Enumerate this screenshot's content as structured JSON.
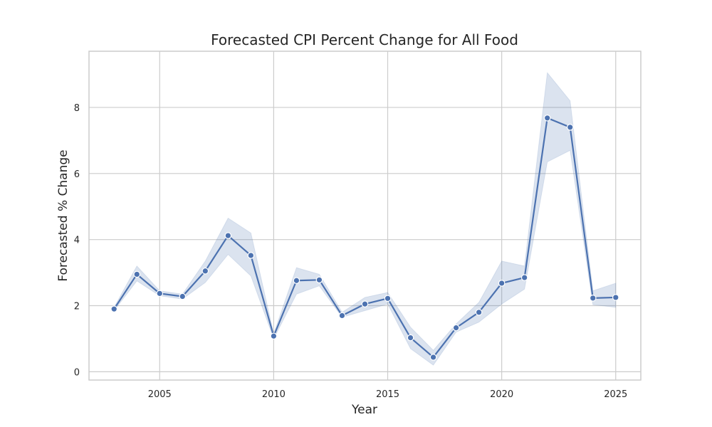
{
  "chart_data": {
    "type": "line",
    "title": "Forecasted CPI Percent Change for All Food",
    "xlabel": "Year",
    "ylabel": "Forecasted % Change",
    "xlim": [
      2001.9,
      2026.1
    ],
    "ylim": [
      -0.25,
      9.7
    ],
    "x_ticks": [
      2005,
      2010,
      2015,
      2020,
      2025
    ],
    "y_ticks": [
      0,
      2,
      4,
      6,
      8
    ],
    "x_tick_labels": [
      "2005",
      "2010",
      "2015",
      "2020",
      "2025"
    ],
    "y_tick_labels": [
      "0",
      "2",
      "4",
      "6",
      "8"
    ],
    "grid": true,
    "legend": "none",
    "colors": {
      "series": "#4c72b0",
      "grid": "#cccccc",
      "text": "#262626"
    },
    "series": [
      {
        "x": [
          2003,
          2004,
          2005,
          2006,
          2007,
          2008,
          2009,
          2010,
          2011,
          2012,
          2013,
          2014,
          2015,
          2016,
          2017,
          2018,
          2019,
          2020,
          2021,
          2022,
          2023,
          2024,
          2025
        ],
        "values": [
          1.9,
          2.95,
          2.37,
          2.28,
          3.05,
          4.12,
          3.52,
          1.08,
          2.76,
          2.78,
          1.7,
          2.05,
          2.22,
          1.03,
          0.44,
          1.33,
          1.8,
          2.68,
          2.85,
          7.68,
          7.4,
          2.23,
          2.25
        ],
        "ci_lower": [
          1.85,
          2.75,
          2.3,
          2.2,
          2.7,
          3.55,
          2.9,
          1.0,
          2.35,
          2.6,
          1.65,
          1.85,
          2.05,
          0.7,
          0.2,
          1.2,
          1.5,
          2.05,
          2.5,
          6.35,
          6.7,
          2.03,
          1.95
        ],
        "ci_upper": [
          1.95,
          3.2,
          2.45,
          2.35,
          3.35,
          4.65,
          4.2,
          1.15,
          3.15,
          2.95,
          1.8,
          2.25,
          2.4,
          1.35,
          0.65,
          1.45,
          2.1,
          3.35,
          3.2,
          9.05,
          8.2,
          2.45,
          2.68
        ]
      }
    ]
  }
}
